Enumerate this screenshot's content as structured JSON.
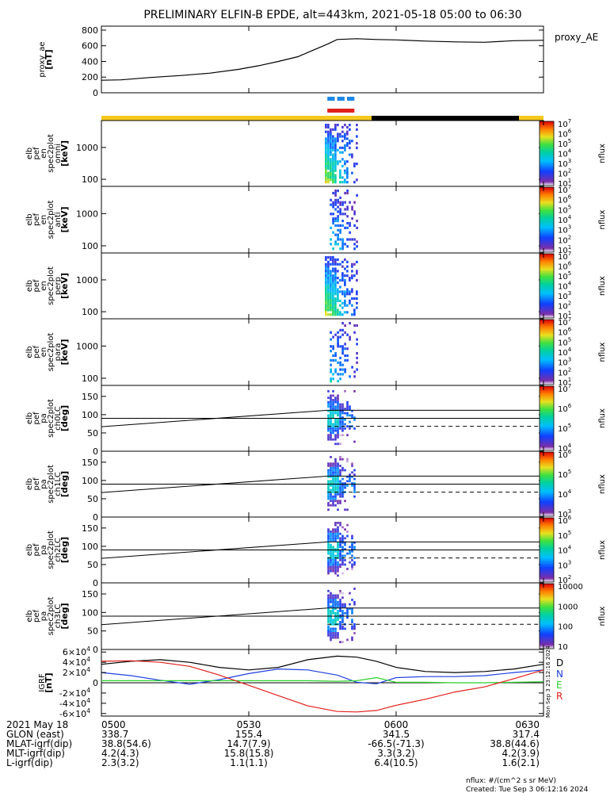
{
  "title": "PRELIMINARY ELFIN-B EPDE, alt=443km, 2021-05-18 05:00 to 06:30",
  "created": "Created: Tue Sep  3 06:12:16 2024",
  "vertical_stamp": "Mon Sep  3 23:12:16 2024",
  "cb_unit_note": "nflux: #/(cm^2 s sr MeV)",
  "chart_data": [
    {
      "id": "ae",
      "type": "line",
      "ylabel_lines": [
        "proxy_ae",
        "[nT]"
      ],
      "legend": "proxy_AE",
      "ylim": [
        0,
        850
      ],
      "yticks": [
        0,
        200,
        400,
        600,
        800
      ],
      "ytick_labels": [
        "0",
        "200",
        "400",
        "600",
        "800"
      ],
      "x": [
        "05:00",
        "05:04",
        "05:10",
        "05:16",
        "05:22",
        "05:28",
        "05:32",
        "05:36",
        "05:40",
        "05:43",
        "05:46",
        "05:48",
        "05:52",
        "05:56",
        "06:00",
        "06:06",
        "06:12",
        "06:18",
        "06:24",
        "06:30"
      ],
      "values": [
        160,
        165,
        195,
        220,
        250,
        300,
        345,
        400,
        460,
        540,
        620,
        680,
        690,
        680,
        675,
        660,
        650,
        645,
        665,
        670
      ],
      "color": "#000000"
    },
    {
      "id": "status",
      "type": "bar",
      "legend": "",
      "bars": [
        {
          "color": "#1e88e5",
          "segments": [
            [
              "05:46",
              "05:47:30"
            ],
            [
              "05:48",
              "05:49:30"
            ],
            [
              "05:50",
              "05:51:30"
            ]
          ]
        },
        {
          "color": "#e0201c",
          "segments": [
            [
              "05:46",
              "05:51:30"
            ]
          ]
        }
      ],
      "orbit_stripe": [
        {
          "from": "05:00",
          "to": "05:55",
          "color": "#f4c81e"
        },
        {
          "from": "05:55",
          "to": "06:25",
          "color": "#000000"
        },
        {
          "from": "06:25",
          "to": "06:30",
          "color": "#f4c81e"
        }
      ]
    },
    {
      "id": "en_omni",
      "type": "heatmap",
      "ylabel_lines": [
        "elb",
        "pef",
        "en",
        "spec2plot",
        "omni",
        "[keV]"
      ],
      "y_scale": "log",
      "ylim": [
        60,
        7000
      ],
      "yticks": [
        100,
        1000
      ],
      "ytick_labels": [
        "100",
        "1000"
      ],
      "t_range": [
        "05:45:30",
        "05:52:30"
      ],
      "intensity": "high",
      "colorbar": {
        "label": "nflux",
        "scale": "log",
        "min_exp": 1,
        "max_exp": 7,
        "tick_labels": [
          "10^7",
          "10^6",
          "10^5",
          "10^4",
          "10^3",
          "10^2",
          "10^1"
        ]
      }
    },
    {
      "id": "en_anti",
      "type": "heatmap",
      "ylabel_lines": [
        "elb",
        "pef",
        "en",
        "spec2plot",
        "anti",
        "[keV]"
      ],
      "y_scale": "log",
      "ylim": [
        60,
        7000
      ],
      "yticks": [
        100,
        1000
      ],
      "ytick_labels": [
        "100",
        "1000"
      ],
      "t_range": [
        "05:46:30",
        "05:52:30"
      ],
      "intensity": "low",
      "colorbar": {
        "label": "nflux",
        "scale": "log",
        "min_exp": 1,
        "max_exp": 7,
        "tick_labels": [
          "10^7",
          "10^6",
          "10^5",
          "10^4",
          "10^3",
          "10^2",
          "10^1"
        ]
      }
    },
    {
      "id": "en_perp",
      "type": "heatmap",
      "ylabel_lines": [
        "elb",
        "pef",
        "en",
        "spec2plot",
        "perp",
        "[keV]"
      ],
      "y_scale": "log",
      "ylim": [
        60,
        7000
      ],
      "yticks": [
        100,
        1000
      ],
      "ytick_labels": [
        "100",
        "1000"
      ],
      "t_range": [
        "05:45:30",
        "05:52:30"
      ],
      "intensity": "high",
      "colorbar": {
        "label": "nflux",
        "scale": "log",
        "min_exp": 1,
        "max_exp": 7,
        "tick_labels": [
          "10^7",
          "10^6",
          "10^5",
          "10^4",
          "10^3",
          "10^2",
          "10^1"
        ]
      }
    },
    {
      "id": "en_para",
      "type": "heatmap",
      "ylabel_lines": [
        "elb",
        "pef",
        "en",
        "spec2plot",
        "para",
        "[keV]"
      ],
      "y_scale": "log",
      "ylim": [
        60,
        7000
      ],
      "yticks": [
        100,
        1000
      ],
      "ytick_labels": [
        "100",
        "1000"
      ],
      "t_range": [
        "05:46:30",
        "05:52:30"
      ],
      "intensity": "low",
      "colorbar": {
        "label": "nflux",
        "scale": "log",
        "min_exp": 1,
        "max_exp": 7,
        "tick_labels": [
          "10^7",
          "10^6",
          "10^5",
          "10^4",
          "10^3",
          "10^2",
          "10^1"
        ]
      }
    },
    {
      "id": "pa_ch0",
      "type": "heatmap",
      "ylabel_lines": [
        "elb",
        "pef",
        "pa",
        "spec2plot",
        "ch0LC",
        "[deg]"
      ],
      "ylim": [
        0,
        180
      ],
      "yticks": [
        0,
        50,
        100,
        150
      ],
      "ytick_labels": [
        "0",
        "50",
        "100",
        "150"
      ],
      "t_range": [
        "05:46:00",
        "05:52:00"
      ],
      "lc_line": [
        [
          0,
          67
        ],
        [
          46,
          112
        ]
      ],
      "alc_line": [
        [
          0,
          113
        ],
        [
          46,
          68
        ]
      ],
      "dashed_from": 46,
      "hlines": [
        90
      ],
      "colorbar": {
        "label": "nflux",
        "scale": "log",
        "min_exp": 4,
        "max_exp": 7,
        "tick_labels": [
          "10^7",
          "10^6",
          "10^5",
          "10^4"
        ]
      }
    },
    {
      "id": "pa_ch1",
      "type": "heatmap",
      "ylabel_lines": [
        "elb",
        "pef",
        "pa",
        "spec2plot",
        "ch1LC",
        "[deg]"
      ],
      "ylim": [
        0,
        180
      ],
      "yticks": [
        0,
        50,
        100,
        150
      ],
      "ytick_labels": [
        "0",
        "50",
        "100",
        "150"
      ],
      "t_range": [
        "05:46:00",
        "05:52:00"
      ],
      "lc_line": [
        [
          0,
          67
        ],
        [
          46,
          112
        ]
      ],
      "alc_line": [
        [
          0,
          113
        ],
        [
          46,
          68
        ]
      ],
      "dashed_from": 46,
      "hlines": [
        90
      ],
      "colorbar": {
        "label": "nflux",
        "scale": "log",
        "min_exp": 3,
        "max_exp": 6,
        "tick_labels": [
          "10^6",
          "10^5",
          "10^4",
          "10^3"
        ]
      }
    },
    {
      "id": "pa_ch2",
      "type": "heatmap",
      "ylabel_lines": [
        "elb",
        "pef",
        "pa",
        "spec2plot",
        "ch2LC",
        "[deg]"
      ],
      "ylim": [
        0,
        180
      ],
      "yticks": [
        0,
        50,
        100,
        150
      ],
      "ytick_labels": [
        "0",
        "50",
        "100",
        "150"
      ],
      "t_range": [
        "05:46:00",
        "05:52:00"
      ],
      "lc_line": [
        [
          0,
          67
        ],
        [
          46,
          112
        ]
      ],
      "alc_line": [
        [
          0,
          113
        ],
        [
          46,
          68
        ]
      ],
      "dashed_from": 46,
      "hlines": [
        90
      ],
      "colorbar": {
        "label": "nflux",
        "scale": "log",
        "min_exp": 2,
        "max_exp": 6,
        "tick_labels": [
          "10^6",
          "10^5",
          "10^4",
          "10^3",
          "10^2"
        ]
      }
    },
    {
      "id": "pa_ch3",
      "type": "heatmap",
      "ylabel_lines": [
        "elb",
        "pef",
        "pa",
        "spec2plot",
        "ch3LC",
        "[deg]"
      ],
      "ylim": [
        0,
        180
      ],
      "yticks": [
        0,
        50,
        100,
        150
      ],
      "ytick_labels": [
        "0",
        "50",
        "100",
        "150"
      ],
      "t_range": [
        "05:46:00",
        "05:52:00"
      ],
      "lc_line": [
        [
          0,
          67
        ],
        [
          46,
          112
        ]
      ],
      "alc_line": [
        [
          0,
          113
        ],
        [
          46,
          68
        ]
      ],
      "dashed_from": 46,
      "hlines": [
        90
      ],
      "colorbar": {
        "label": "nflux",
        "scale": "linear-log",
        "min_exp": 1,
        "max_exp": 4,
        "tick_labels": [
          "10000",
          "1000",
          "100",
          "10"
        ]
      }
    },
    {
      "id": "igrf",
      "type": "line",
      "ylabel_lines": [
        "IGRF",
        "[nT]"
      ],
      "ylim": [
        -65000,
        65000
      ],
      "yticks": [
        -60000,
        -40000,
        -20000,
        0,
        20000,
        40000,
        60000
      ],
      "ytick_labels": [
        "-6×10^4",
        "-4×10^4",
        "-2×10^4",
        "0",
        "2×10^4",
        "4×10^4",
        "6×10^4"
      ],
      "x": [
        "05:00",
        "05:06",
        "05:12",
        "05:18",
        "05:24",
        "05:30",
        "05:36",
        "05:42",
        "05:48",
        "05:52",
        "05:56",
        "06:00",
        "06:06",
        "06:12",
        "06:18",
        "06:24",
        "06:30"
      ],
      "series": [
        {
          "name": "D",
          "color": "#000000",
          "values": [
            36000,
            42000,
            45000,
            40000,
            30000,
            25000,
            30000,
            45000,
            52000,
            50000,
            42000,
            30000,
            22000,
            20000,
            22000,
            27000,
            36000
          ]
        },
        {
          "name": "N",
          "color": "#1f3fe0",
          "values": [
            20000,
            14000,
            5000,
            -3000,
            6000,
            18000,
            27000,
            25000,
            15000,
            1000,
            -2000,
            10000,
            12000,
            12000,
            14000,
            20000,
            25000
          ]
        },
        {
          "name": "E",
          "color": "#2bd12b",
          "values": [
            4000,
            4000,
            4000,
            4000,
            4000,
            4000,
            4000,
            4000,
            3000,
            4000,
            10000,
            1000,
            1000,
            0,
            0,
            1000,
            2000
          ]
        },
        {
          "name": "R",
          "color": "#e0201c",
          "values": [
            42000,
            43000,
            40000,
            32000,
            15000,
            -5000,
            -25000,
            -45000,
            -56000,
            -57000,
            -54000,
            -44000,
            -32000,
            -18000,
            -8000,
            8000,
            25000
          ]
        }
      ],
      "hlines": [
        0
      ]
    }
  ],
  "x_axis": {
    "tick_times": [
      "0500",
      "0530",
      "0600",
      "0630"
    ],
    "rows": [
      {
        "label": "2021 May 18",
        "values": [
          "0500",
          "0530",
          "0600",
          "0630"
        ]
      },
      {
        "label": "GLON (east)",
        "values": [
          "338.7",
          "155.4",
          "341.5",
          "317.4"
        ]
      },
      {
        "label": "MLAT-igrf(dip)",
        "values": [
          "38.8(54.6)",
          "14.7(7.9)",
          "-66.5(-71.3)",
          "38.8(44.6)"
        ]
      },
      {
        "label": "MLT-igrf(dip)",
        "values": [
          "4.2(4.3)",
          "15.8(15.8)",
          "3.3(3.2)",
          "4.2(3.9)"
        ]
      },
      {
        "label": "L-igrf(dip)",
        "values": [
          "2.3(3.2)",
          "1.1(1.1)",
          "6.4(10.5)",
          "1.6(2.1)"
        ]
      }
    ]
  }
}
